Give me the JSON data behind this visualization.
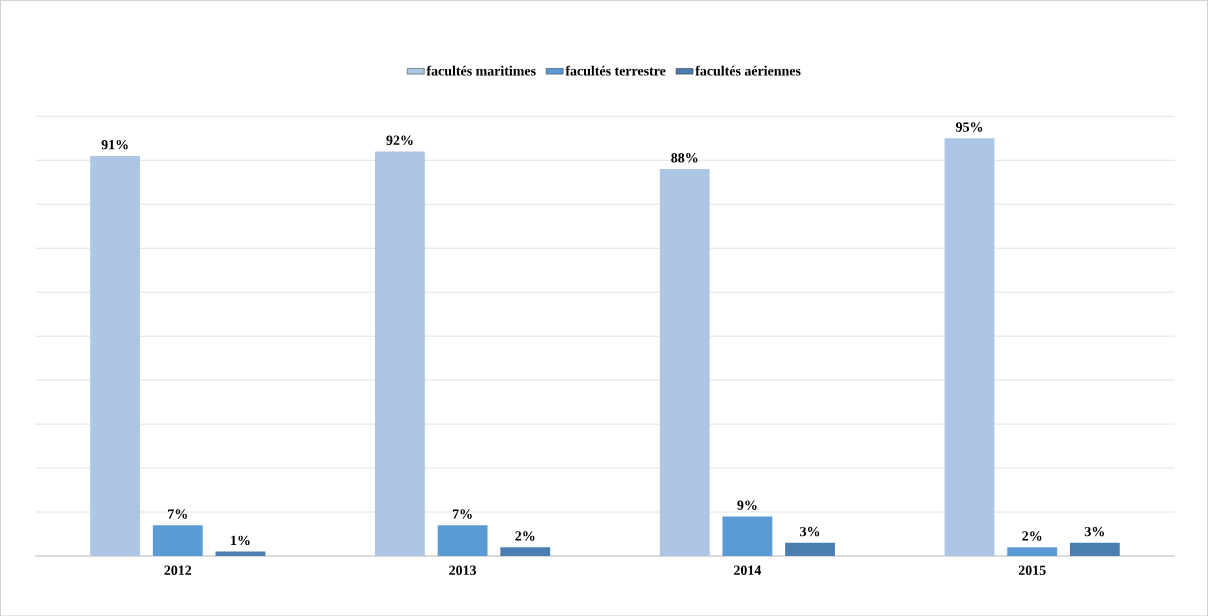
{
  "chart_data": {
    "type": "bar",
    "categories": [
      "2012",
      "2013",
      "2014",
      "2015"
    ],
    "series": [
      {
        "name": "facultés maritimes",
        "color": "#adc6e5",
        "values": [
          91,
          92,
          88,
          95
        ],
        "value_labels": [
          "91%",
          "92%",
          "88%",
          "95%"
        ]
      },
      {
        "name": "facultés terrestre",
        "color": "#5b9bd5",
        "values": [
          7,
          7,
          9,
          2
        ],
        "value_labels": [
          "7%",
          "7%",
          "9%",
          "2%"
        ]
      },
      {
        "name": "facultés aériennes",
        "color": "#4a7eb0",
        "values": [
          1,
          2,
          3,
          3
        ],
        "value_labels": [
          "1%",
          "2%",
          "3%",
          "3%"
        ]
      }
    ],
    "ylim": [
      0,
      100
    ],
    "yticks": [
      {
        "value": 0,
        "label": null
      },
      {
        "value": 10,
        "label": null
      },
      {
        "value": 20,
        "label": null
      },
      {
        "value": 30,
        "label": null
      },
      {
        "value": 40,
        "label": null
      },
      {
        "value": 50,
        "label": null
      },
      {
        "value": 60,
        "label": null
      },
      {
        "value": 70,
        "label": null
      },
      {
        "value": 80,
        "label": null
      },
      {
        "value": 90,
        "label": null
      },
      {
        "value": 100,
        "label": null
      }
    ],
    "grid": "y",
    "legend": "top",
    "tick_labels": "x"
  }
}
